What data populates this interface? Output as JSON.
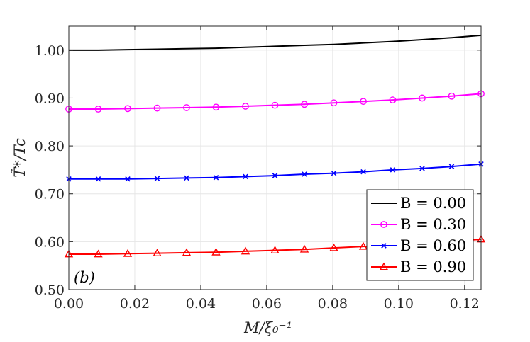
{
  "chart_data": {
    "type": "line",
    "xlabel": "M/ξ₀⁻¹",
    "ylabel": "T̃*/Tc",
    "xlim": [
      0,
      0.125
    ],
    "ylim": [
      0.5,
      1.05
    ],
    "xticks": [
      "0.00",
      "0.02",
      "0.04",
      "0.06",
      "0.08",
      "0.10",
      "0.12"
    ],
    "yticks": [
      "0.50",
      "0.60",
      "0.70",
      "0.80",
      "0.90",
      "1.00"
    ],
    "grid": true,
    "legend_position": "bottom-right",
    "annotation": "(b)",
    "x": [
      0,
      0.00893,
      0.01786,
      0.02679,
      0.03571,
      0.04464,
      0.05357,
      0.0625,
      0.07143,
      0.08036,
      0.08929,
      0.09821,
      0.10714,
      0.11607,
      0.125
    ],
    "series": [
      {
        "name": "B = 0.00",
        "color": "#000000",
        "marker": "none",
        "values": [
          1.0,
          1.0,
          1.001,
          1.002,
          1.003,
          1.004,
          1.006,
          1.008,
          1.01,
          1.012,
          1.015,
          1.018,
          1.022,
          1.026,
          1.031
        ]
      },
      {
        "name": "B = 0.30",
        "color": "#ff00ff",
        "marker": "circle",
        "values": [
          0.877,
          0.877,
          0.878,
          0.879,
          0.88,
          0.881,
          0.883,
          0.885,
          0.887,
          0.89,
          0.893,
          0.896,
          0.9,
          0.904,
          0.909
        ]
      },
      {
        "name": "B = 0.60",
        "color": "#0000ff",
        "marker": "x",
        "values": [
          0.731,
          0.731,
          0.731,
          0.732,
          0.733,
          0.734,
          0.736,
          0.738,
          0.741,
          0.743,
          0.746,
          0.75,
          0.753,
          0.757,
          0.762
        ]
      },
      {
        "name": "B = 0.90",
        "color": "#ff0000",
        "marker": "triangle",
        "values": [
          0.574,
          0.574,
          0.575,
          0.576,
          0.577,
          0.578,
          0.58,
          0.582,
          0.584,
          0.587,
          0.59,
          0.593,
          0.597,
          0.601,
          0.605
        ]
      }
    ]
  }
}
